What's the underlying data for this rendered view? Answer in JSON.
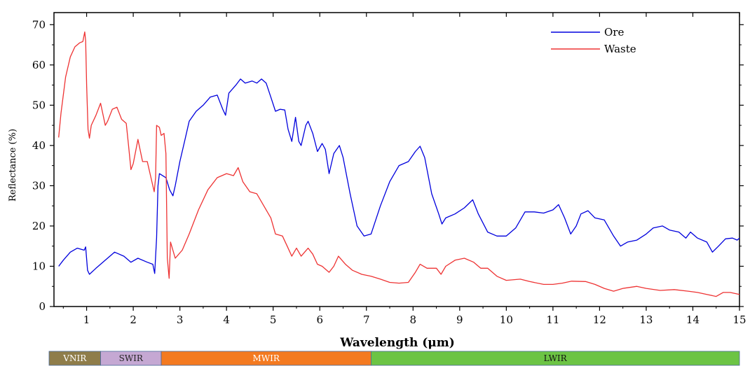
{
  "chart_data": {
    "type": "line",
    "title": "",
    "xlabel": "Wavelength (μm)",
    "ylabel": "Reflectance (%)",
    "xlim": [
      0.3,
      15
    ],
    "ylim": [
      0,
      73
    ],
    "x_ticks": [
      1,
      2,
      3,
      4,
      5,
      6,
      7,
      8,
      9,
      10,
      11,
      12,
      13,
      14,
      15
    ],
    "y_ticks": [
      0,
      10,
      20,
      30,
      40,
      50,
      60,
      70
    ],
    "grid": false,
    "legend_position": "top-right",
    "series": [
      {
        "name": "Ore",
        "color": "#0000dd",
        "points": [
          [
            0.4,
            10
          ],
          [
            0.5,
            11.5
          ],
          [
            0.65,
            13.5
          ],
          [
            0.8,
            14.5
          ],
          [
            0.95,
            14
          ],
          [
            0.98,
            14.8
          ],
          [
            1.02,
            9
          ],
          [
            1.06,
            8
          ],
          [
            1.2,
            9.5
          ],
          [
            1.4,
            11.5
          ],
          [
            1.6,
            13.5
          ],
          [
            1.8,
            12.5
          ],
          [
            1.95,
            11
          ],
          [
            2.1,
            12
          ],
          [
            2.3,
            11
          ],
          [
            2.42,
            10.5
          ],
          [
            2.46,
            8.2
          ],
          [
            2.5,
            17
          ],
          [
            2.53,
            30
          ],
          [
            2.56,
            33
          ],
          [
            2.7,
            32
          ],
          [
            2.78,
            29
          ],
          [
            2.85,
            27.5
          ],
          [
            2.9,
            30
          ],
          [
            3.0,
            36
          ],
          [
            3.1,
            41
          ],
          [
            3.2,
            46
          ],
          [
            3.35,
            48.5
          ],
          [
            3.5,
            50
          ],
          [
            3.65,
            52
          ],
          [
            3.8,
            52.5
          ],
          [
            3.92,
            49
          ],
          [
            3.98,
            47.5
          ],
          [
            4.05,
            53
          ],
          [
            4.2,
            55
          ],
          [
            4.3,
            56.5
          ],
          [
            4.4,
            55.5
          ],
          [
            4.55,
            56
          ],
          [
            4.65,
            55.5
          ],
          [
            4.75,
            56.5
          ],
          [
            4.85,
            55.5
          ],
          [
            4.95,
            52
          ],
          [
            5.05,
            48.5
          ],
          [
            5.15,
            49
          ],
          [
            5.25,
            48.8
          ],
          [
            5.32,
            44
          ],
          [
            5.4,
            41
          ],
          [
            5.48,
            47
          ],
          [
            5.55,
            41
          ],
          [
            5.6,
            40
          ],
          [
            5.7,
            45
          ],
          [
            5.75,
            46
          ],
          [
            5.85,
            43
          ],
          [
            5.95,
            38.5
          ],
          [
            6.05,
            40.5
          ],
          [
            6.12,
            39
          ],
          [
            6.2,
            33
          ],
          [
            6.3,
            38
          ],
          [
            6.42,
            40
          ],
          [
            6.5,
            37
          ],
          [
            6.65,
            28
          ],
          [
            6.8,
            20
          ],
          [
            6.95,
            17.5
          ],
          [
            7.1,
            18
          ],
          [
            7.3,
            25
          ],
          [
            7.5,
            31
          ],
          [
            7.7,
            35
          ],
          [
            7.9,
            36
          ],
          [
            8.05,
            38.5
          ],
          [
            8.15,
            39.8
          ],
          [
            8.25,
            37
          ],
          [
            8.4,
            28
          ],
          [
            8.55,
            23
          ],
          [
            8.62,
            20.5
          ],
          [
            8.7,
            22
          ],
          [
            8.9,
            23
          ],
          [
            9.1,
            24.5
          ],
          [
            9.28,
            26.5
          ],
          [
            9.4,
            23
          ],
          [
            9.6,
            18.5
          ],
          [
            9.8,
            17.5
          ],
          [
            10.0,
            17.5
          ],
          [
            10.2,
            19.5
          ],
          [
            10.4,
            23.5
          ],
          [
            10.6,
            23.5
          ],
          [
            10.8,
            23.2
          ],
          [
            11.0,
            24
          ],
          [
            11.12,
            25.3
          ],
          [
            11.25,
            22
          ],
          [
            11.38,
            18
          ],
          [
            11.5,
            20
          ],
          [
            11.6,
            23
          ],
          [
            11.75,
            23.8
          ],
          [
            11.9,
            22
          ],
          [
            12.1,
            21.5
          ],
          [
            12.3,
            17.5
          ],
          [
            12.45,
            15
          ],
          [
            12.6,
            16
          ],
          [
            12.8,
            16.5
          ],
          [
            13.0,
            18
          ],
          [
            13.15,
            19.5
          ],
          [
            13.35,
            20
          ],
          [
            13.5,
            19
          ],
          [
            13.7,
            18.5
          ],
          [
            13.85,
            17
          ],
          [
            13.95,
            18.5
          ],
          [
            14.1,
            17
          ],
          [
            14.3,
            16
          ],
          [
            14.42,
            13.5
          ],
          [
            14.55,
            15
          ],
          [
            14.7,
            16.8
          ],
          [
            14.85,
            17
          ],
          [
            14.95,
            16.5
          ],
          [
            15.0,
            17
          ]
        ]
      },
      {
        "name": "Waste",
        "color": "#ee3333",
        "points": [
          [
            0.4,
            42
          ],
          [
            0.45,
            48
          ],
          [
            0.55,
            57
          ],
          [
            0.65,
            62
          ],
          [
            0.75,
            64.5
          ],
          [
            0.85,
            65.5
          ],
          [
            0.92,
            65.8
          ],
          [
            0.96,
            68.2
          ],
          [
            0.98,
            66
          ],
          [
            1.0,
            55
          ],
          [
            1.03,
            44
          ],
          [
            1.06,
            41.8
          ],
          [
            1.1,
            45
          ],
          [
            1.2,
            47.5
          ],
          [
            1.3,
            50.5
          ],
          [
            1.4,
            45
          ],
          [
            1.45,
            46
          ],
          [
            1.55,
            49
          ],
          [
            1.65,
            49.5
          ],
          [
            1.75,
            46.5
          ],
          [
            1.85,
            45.5
          ],
          [
            1.9,
            40
          ],
          [
            1.95,
            34
          ],
          [
            2.0,
            35.5
          ],
          [
            2.1,
            41.5
          ],
          [
            2.2,
            36
          ],
          [
            2.3,
            36
          ],
          [
            2.4,
            31
          ],
          [
            2.45,
            28.5
          ],
          [
            2.48,
            32
          ],
          [
            2.5,
            45
          ],
          [
            2.56,
            44.5
          ],
          [
            2.6,
            42.5
          ],
          [
            2.66,
            43
          ],
          [
            2.7,
            38
          ],
          [
            2.73,
            12
          ],
          [
            2.77,
            7
          ],
          [
            2.8,
            16
          ],
          [
            2.9,
            12
          ],
          [
            3.05,
            14
          ],
          [
            3.2,
            18
          ],
          [
            3.4,
            24
          ],
          [
            3.6,
            29
          ],
          [
            3.8,
            32
          ],
          [
            4.0,
            33
          ],
          [
            4.15,
            32.5
          ],
          [
            4.25,
            34.5
          ],
          [
            4.35,
            31
          ],
          [
            4.5,
            28.5
          ],
          [
            4.65,
            28
          ],
          [
            4.8,
            25
          ],
          [
            4.95,
            22
          ],
          [
            5.05,
            18
          ],
          [
            5.2,
            17.5
          ],
          [
            5.3,
            15
          ],
          [
            5.4,
            12.5
          ],
          [
            5.5,
            14.5
          ],
          [
            5.6,
            12.5
          ],
          [
            5.75,
            14.5
          ],
          [
            5.85,
            13
          ],
          [
            5.95,
            10.5
          ],
          [
            6.05,
            10
          ],
          [
            6.2,
            8.5
          ],
          [
            6.3,
            10
          ],
          [
            6.4,
            12.5
          ],
          [
            6.55,
            10.5
          ],
          [
            6.7,
            9
          ],
          [
            6.9,
            8
          ],
          [
            7.1,
            7.5
          ],
          [
            7.3,
            6.8
          ],
          [
            7.5,
            6
          ],
          [
            7.7,
            5.8
          ],
          [
            7.9,
            6
          ],
          [
            8.05,
            8.5
          ],
          [
            8.15,
            10.5
          ],
          [
            8.3,
            9.5
          ],
          [
            8.5,
            9.5
          ],
          [
            8.6,
            8
          ],
          [
            8.7,
            10
          ],
          [
            8.9,
            11.5
          ],
          [
            9.1,
            12
          ],
          [
            9.3,
            11
          ],
          [
            9.45,
            9.5
          ],
          [
            9.6,
            9.5
          ],
          [
            9.8,
            7.5
          ],
          [
            10.0,
            6.5
          ],
          [
            10.3,
            6.8
          ],
          [
            10.5,
            6.2
          ],
          [
            10.8,
            5.5
          ],
          [
            11.0,
            5.5
          ],
          [
            11.2,
            5.8
          ],
          [
            11.4,
            6.3
          ],
          [
            11.7,
            6.2
          ],
          [
            11.9,
            5.5
          ],
          [
            12.1,
            4.5
          ],
          [
            12.3,
            3.8
          ],
          [
            12.5,
            4.5
          ],
          [
            12.8,
            5
          ],
          [
            13.0,
            4.5
          ],
          [
            13.3,
            4
          ],
          [
            13.6,
            4.2
          ],
          [
            13.9,
            3.8
          ],
          [
            14.1,
            3.5
          ],
          [
            14.3,
            3
          ],
          [
            14.5,
            2.5
          ],
          [
            14.65,
            3.5
          ],
          [
            14.8,
            3.5
          ],
          [
            15.0,
            3
          ]
        ]
      }
    ],
    "bands": [
      {
        "label": "VNIR",
        "from": 0.3,
        "to": 1.3,
        "color": "#8f7d4a",
        "text_color": "#ffffff"
      },
      {
        "label": "SWIR",
        "from": 1.3,
        "to": 2.6,
        "color": "#c5a8d3",
        "text_color": "#222222"
      },
      {
        "label": "MWIR",
        "from": 2.6,
        "to": 7.1,
        "color": "#f47a20",
        "text_color": "#ffffff"
      },
      {
        "label": "LWIR",
        "from": 7.1,
        "to": 15,
        "color": "#6cc444",
        "text_color": "#111111"
      }
    ]
  }
}
